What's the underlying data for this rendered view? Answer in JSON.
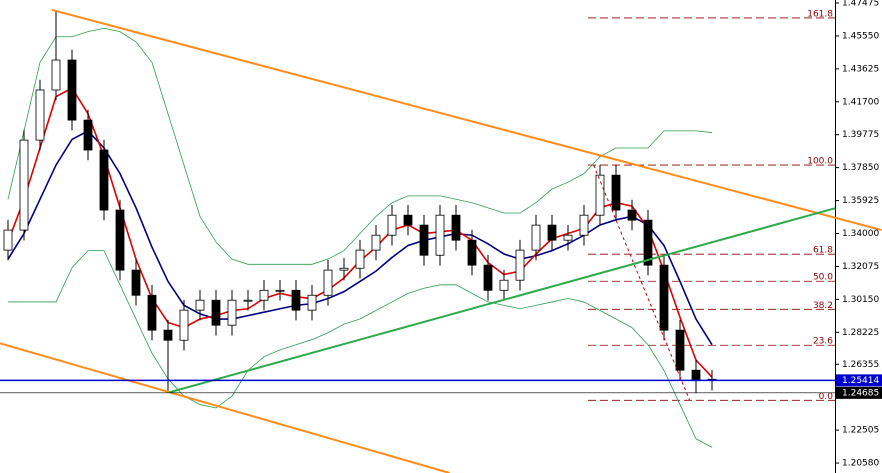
{
  "chart_data": {
    "type": "candlestick",
    "ylim": [
      1.2,
      1.4765
    ],
    "yticks": [
      {
        "value": 1.47475,
        "label": "1.47475"
      },
      {
        "value": 1.4555,
        "label": "1.45550"
      },
      {
        "value": 1.43625,
        "label": "1.43625"
      },
      {
        "value": 1.417,
        "label": "1.41700"
      },
      {
        "value": 1.39775,
        "label": "1.39775"
      },
      {
        "value": 1.3785,
        "label": "1.37850"
      },
      {
        "value": 1.35925,
        "label": "1.35925"
      },
      {
        "value": 1.34,
        "label": "1.34000"
      },
      {
        "value": 1.32075,
        "label": "1.32075"
      },
      {
        "value": 1.3015,
        "label": "1.30150"
      },
      {
        "value": 1.28225,
        "label": "1.28225"
      },
      {
        "value": 1.26355,
        "label": "1.26355"
      },
      {
        "value": 1.22505,
        "label": "1.22505"
      },
      {
        "value": 1.2058,
        "label": "1.20580"
      }
    ],
    "up_color": "#ffffff",
    "down_color": "#000000",
    "candles": {
      "open": [
        1.3303,
        1.342,
        1.3946,
        1.4239,
        1.4414,
        1.4063,
        1.3888,
        1.3537,
        1.3186,
        1.3039,
        1.2835,
        1.2776,
        1.2952,
        1.301,
        1.2864,
        1.301,
        1.301,
        1.3068,
        1.3068,
        1.2952,
        1.3039,
        1.3186,
        1.3197,
        1.3303,
        1.339,
        1.3507,
        1.3449,
        1.3273,
        1.3507,
        1.3361,
        1.3215,
        1.3068,
        1.3127,
        1.3303,
        1.3449,
        1.3361,
        1.339,
        1.3507,
        1.3741,
        1.3537,
        1.3478,
        1.3215,
        1.2835,
        1.2601,
        1.2542
      ],
      "high": [
        1.348,
        1.4006,
        1.4299,
        1.4707,
        1.4474,
        1.4123,
        1.3948,
        1.3597,
        1.3246,
        1.3099,
        1.2895,
        1.3012,
        1.307,
        1.307,
        1.307,
        1.307,
        1.3128,
        1.3128,
        1.3128,
        1.3099,
        1.3246,
        1.3257,
        1.3363,
        1.345,
        1.3567,
        1.3567,
        1.3509,
        1.3567,
        1.3567,
        1.3421,
        1.3275,
        1.3187,
        1.3363,
        1.3509,
        1.3509,
        1.345,
        1.3567,
        1.3801,
        1.3801,
        1.3597,
        1.3538,
        1.3275,
        1.2895,
        1.2661,
        1.2602
      ],
      "low": [
        1.3243,
        1.336,
        1.3886,
        1.4179,
        1.4003,
        1.3828,
        1.3477,
        1.3126,
        1.2979,
        1.2775,
        1.248,
        1.2716,
        1.2892,
        1.2804,
        1.2804,
        1.295,
        1.295,
        1.3008,
        1.2892,
        1.2892,
        1.2979,
        1.3126,
        1.3137,
        1.3243,
        1.333,
        1.3389,
        1.3213,
        1.3213,
        1.3301,
        1.3155,
        1.3008,
        1.3008,
        1.3067,
        1.3243,
        1.3301,
        1.3301,
        1.333,
        1.3447,
        1.3477,
        1.3418,
        1.3155,
        1.2775,
        1.2541,
        1.2466,
        1.2482
      ],
      "close": [
        1.342,
        1.3946,
        1.4239,
        1.4414,
        1.4063,
        1.3888,
        1.3537,
        1.3186,
        1.3039,
        1.2835,
        1.2776,
        1.2952,
        1.301,
        1.2864,
        1.301,
        1.301,
        1.3068,
        1.3068,
        1.2952,
        1.3039,
        1.3186,
        1.3197,
        1.3303,
        1.339,
        1.3507,
        1.3449,
        1.3273,
        1.3507,
        1.3361,
        1.3215,
        1.3068,
        1.3127,
        1.3303,
        1.3449,
        1.3361,
        1.339,
        1.3507,
        1.3741,
        1.3537,
        1.3478,
        1.3215,
        1.2835,
        1.2601,
        1.2542,
        1.2548
      ]
    },
    "indicators": [
      {
        "color": "#2e9e4f",
        "width": 0.8,
        "values": [
          1.36,
          1.4,
          1.44,
          1.455,
          1.455,
          1.458,
          1.46,
          1.458,
          1.452,
          1.44,
          1.41,
          1.38,
          1.35,
          1.335,
          1.325,
          1.322,
          1.322,
          1.322,
          1.322,
          1.322,
          1.325,
          1.33,
          1.34,
          1.35,
          1.358,
          1.362,
          1.362,
          1.362,
          1.36,
          1.358,
          1.355,
          1.352,
          1.352,
          1.358,
          1.366,
          1.37,
          1.375,
          1.385,
          1.39,
          1.39,
          1.39,
          1.4,
          1.4,
          1.4,
          1.399
        ]
      },
      {
        "color": "#2e9e4f",
        "width": 0.8,
        "values": [
          1.3,
          1.3,
          1.3,
          1.3,
          1.32,
          1.33,
          1.33,
          1.31,
          1.29,
          1.27,
          1.255,
          1.245,
          1.24,
          1.238,
          1.245,
          1.26,
          1.268,
          1.272,
          1.275,
          1.278,
          1.282,
          1.287,
          1.29,
          1.295,
          1.3,
          1.305,
          1.308,
          1.31,
          1.31,
          1.305,
          1.3,
          1.298,
          1.296,
          1.298,
          1.3,
          1.302,
          1.3,
          1.295,
          1.29,
          1.285,
          1.275,
          1.26,
          1.24,
          1.22,
          1.215
        ]
      },
      {
        "color": "#000080",
        "width": 1.6,
        "values": [
          1.325,
          1.34,
          1.36,
          1.38,
          1.395,
          1.4,
          1.39,
          1.375,
          1.355,
          1.332,
          1.312,
          1.298,
          1.293,
          1.29,
          1.29,
          1.292,
          1.294,
          1.296,
          1.298,
          1.299,
          1.302,
          1.306,
          1.312,
          1.318,
          1.326,
          1.333,
          1.336,
          1.338,
          1.34,
          1.339,
          1.334,
          1.328,
          1.325,
          1.327,
          1.33,
          1.334,
          1.339,
          1.345,
          1.348,
          1.35,
          1.345,
          1.333,
          1.312,
          1.29,
          1.275
        ]
      },
      {
        "color": "#e00000",
        "width": 1.6,
        "values": [
          1.335,
          1.36,
          1.39,
          1.42,
          1.425,
          1.41,
          1.385,
          1.355,
          1.325,
          1.302,
          1.288,
          1.285,
          1.29,
          1.292,
          1.295,
          1.296,
          1.302,
          1.305,
          1.303,
          1.302,
          1.307,
          1.314,
          1.324,
          1.332,
          1.342,
          1.345,
          1.34,
          1.341,
          1.342,
          1.336,
          1.323,
          1.316,
          1.318,
          1.328,
          1.337,
          1.34,
          1.343,
          1.355,
          1.358,
          1.356,
          1.343,
          1.318,
          1.291,
          1.266,
          1.256
        ]
      }
    ],
    "trendlines": [
      {
        "color": "#ff8c1a",
        "x": [
          2.75,
          54.6
        ],
        "y": [
          1.4707,
          1.342
        ]
      },
      {
        "color": "#ff8c1a",
        "x": [
          -0.5,
          27.6
        ],
        "y": [
          1.2758,
          1.2
        ]
      },
      {
        "color": "#2eaa4a",
        "x": [
          10.1,
          51.7
        ],
        "y": [
          1.2472,
          1.3548
        ]
      },
      {
        "color": "#cc0000",
        "dashed": true,
        "x": [
          36.6,
          42.6
        ],
        "y": [
          1.38,
          1.2425
        ]
      }
    ],
    "fib_color": "#8b0000",
    "fib_levels": [
      {
        "label": "161.8",
        "value": 1.466
      },
      {
        "label": "100.0",
        "value": 1.38
      },
      {
        "label": "61.8",
        "value": 1.3279
      },
      {
        "label": "50.0",
        "value": 1.3121
      },
      {
        "label": "38.2",
        "value": 1.2957
      },
      {
        "label": "23.6",
        "value": 1.2747
      },
      {
        "label": "0.0",
        "value": 1.2425
      }
    ],
    "price_lines": [
      {
        "value": 1.25414,
        "color": "#0000cc"
      },
      {
        "value": 1.24685,
        "color": "#000000"
      }
    ]
  }
}
